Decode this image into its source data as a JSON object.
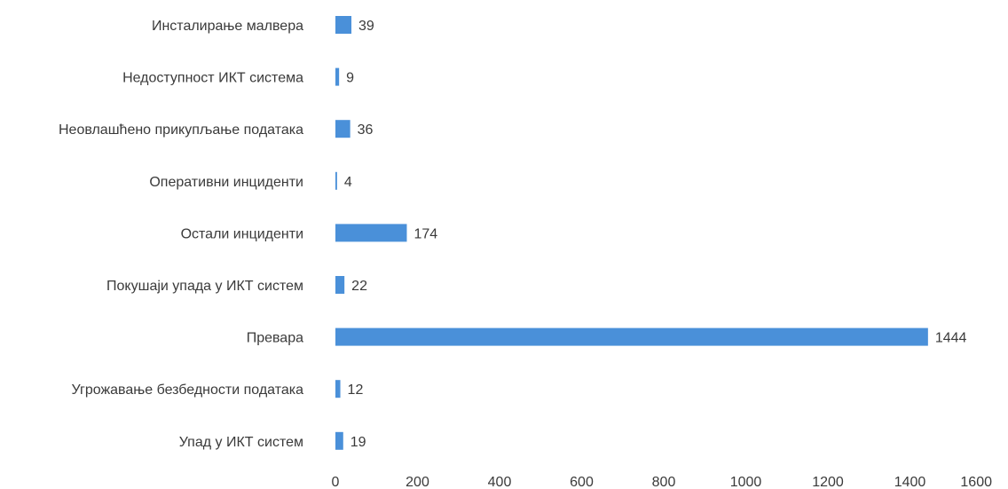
{
  "chart_data": {
    "type": "bar",
    "orientation": "horizontal",
    "categories": [
      "Инсталирање малвера",
      "Недоступност ИКТ система",
      "Неовлашћено прикупљање података",
      "Оперативни инциденти",
      "Остали инциденти",
      "Покушаји упада у ИКТ систем",
      "Превара",
      "Угрожавање безбедности података",
      "Упад у ИКТ систем"
    ],
    "values": [
      39,
      9,
      36,
      4,
      174,
      22,
      1444,
      12,
      19
    ],
    "value_labels": [
      "39",
      "9",
      "36",
      "4",
      "174",
      "22",
      "1444",
      "12",
      "19"
    ],
    "xlim": [
      0,
      1600
    ],
    "x_ticks": [
      0,
      200,
      400,
      600,
      800,
      1000,
      1200,
      1400,
      1600
    ],
    "x_tick_labels": [
      "0",
      "200",
      "400",
      "600",
      "800",
      "1000",
      "1200",
      "1400",
      "1600"
    ],
    "bar_color": "#4a90d9",
    "grid": false,
    "legend": "none"
  }
}
